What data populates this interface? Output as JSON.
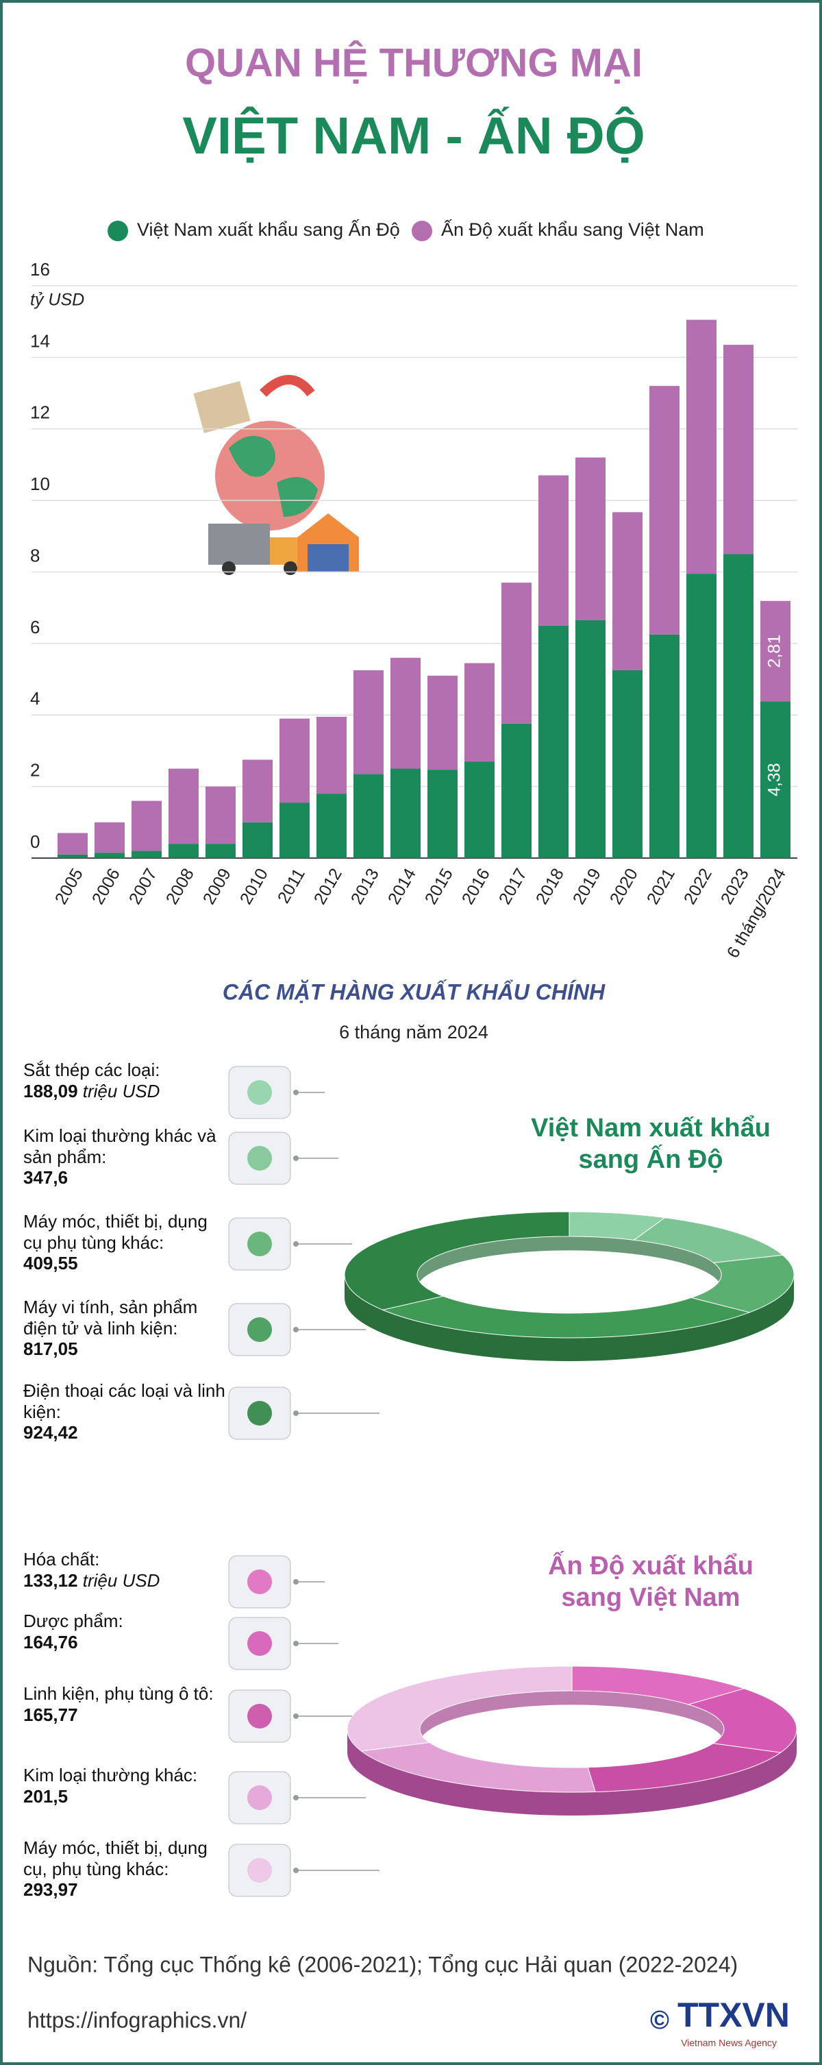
{
  "header": {
    "title_line1": "QUAN HỆ THƯƠNG MẠI",
    "title_line2": "VIỆT NAM - ẤN ĐỘ"
  },
  "chart_data": [
    {
      "type": "stacked_bar",
      "y_axis_label": "tỷ USD",
      "categories": [
        "2005",
        "2006",
        "2007",
        "2008",
        "2009",
        "2010",
        "2011",
        "2012",
        "2013",
        "2014",
        "2015",
        "2016",
        "2017",
        "2018",
        "2019",
        "2020",
        "2021",
        "2022",
        "2023",
        "6 tháng/2024"
      ],
      "series": [
        {
          "name": "Việt Nam xuất khẩu sang Ấn Độ",
          "color": "#1b8a5a",
          "values": [
            0.1,
            0.15,
            0.2,
            0.4,
            0.4,
            1.0,
            1.55,
            1.8,
            2.35,
            2.5,
            2.47,
            2.7,
            3.76,
            6.5,
            6.65,
            5.25,
            6.25,
            7.95,
            8.5,
            4.38
          ],
          "value_labels": [
            null,
            null,
            null,
            null,
            null,
            null,
            null,
            null,
            null,
            null,
            null,
            null,
            null,
            null,
            null,
            null,
            null,
            null,
            null,
            "4,38"
          ]
        },
        {
          "name": "Ấn Độ xuất khẩu sang Việt Nam",
          "color": "#b36fb0",
          "values": [
            0.6,
            0.85,
            1.4,
            2.1,
            1.6,
            1.75,
            2.35,
            2.15,
            2.9,
            3.1,
            2.63,
            2.75,
            3.94,
            4.2,
            4.55,
            4.42,
            6.95,
            7.1,
            5.85,
            2.81
          ],
          "value_labels": [
            null,
            null,
            null,
            null,
            null,
            null,
            null,
            null,
            null,
            null,
            null,
            null,
            null,
            null,
            null,
            null,
            null,
            null,
            null,
            "2,81"
          ]
        }
      ],
      "ylim": [
        0,
        16
      ],
      "yticks": [
        0,
        2,
        4,
        6,
        8,
        10,
        12,
        14,
        16
      ],
      "grid": true,
      "legend": "top"
    },
    {
      "type": "donut",
      "title": "CÁC MẶT HÀNG XUẤT KHẨU CHÍNH",
      "subtitle": "6 tháng năm 2024",
      "ring_title": [
        "Việt Nam xuất khẩu",
        "sang Ấn Độ"
      ],
      "title_color": "#1b8a5a",
      "unit": "triệu USD",
      "categories": [
        "Sắt thép các loại:",
        "Kim loại thường khác và sản phẩm:",
        "Máy móc, thiết bị, dụng cụ phụ tùng khác:",
        "Máy vi tính, sản phẩm điện tử và linh kiện:",
        "Điện thoại các loại và linh kiện:"
      ],
      "values": [
        188.09,
        347.6,
        409.55,
        817.05,
        924.42
      ],
      "value_labels": [
        "188,09",
        "347,6",
        "409,55",
        "817,05",
        "924,42"
      ],
      "colors": [
        "#8fd1a6",
        "#7cc493",
        "#5bb071",
        "#3f9a55",
        "#2e8444"
      ],
      "side_color": "#2a6e3c"
    },
    {
      "type": "donut",
      "ring_title": [
        "Ấn Độ xuất khẩu",
        "sang Việt Nam"
      ],
      "title_color": "#b85fae",
      "unit": "triệu USD",
      "categories": [
        "Hóa chất:",
        "Dược phẩm:",
        "Linh kiện, phụ tùng ô tô:",
        "Kim loại thường khác:",
        "Máy móc, thiết bị, dụng cụ, phụ tùng khác:"
      ],
      "values": [
        133.12,
        164.76,
        165.77,
        201.5,
        293.97
      ],
      "value_labels": [
        "133,12",
        "164,76",
        "165,77",
        "201,5",
        "293,97"
      ],
      "colors": [
        "#e06cc0",
        "#d65ab4",
        "#c94fa6",
        "#e3a2d6",
        "#edc3e6"
      ],
      "side_color": "#a2488f"
    }
  ],
  "footer": {
    "source": "Nguồn: Tổng cục Thống kê (2006-2021); Tổng cục Hải quan (2022-2024)",
    "url": "https://infographics.vn/",
    "copyright": "©",
    "logo": "TTXVN",
    "logo_sub": "Vietnam News Agency"
  }
}
